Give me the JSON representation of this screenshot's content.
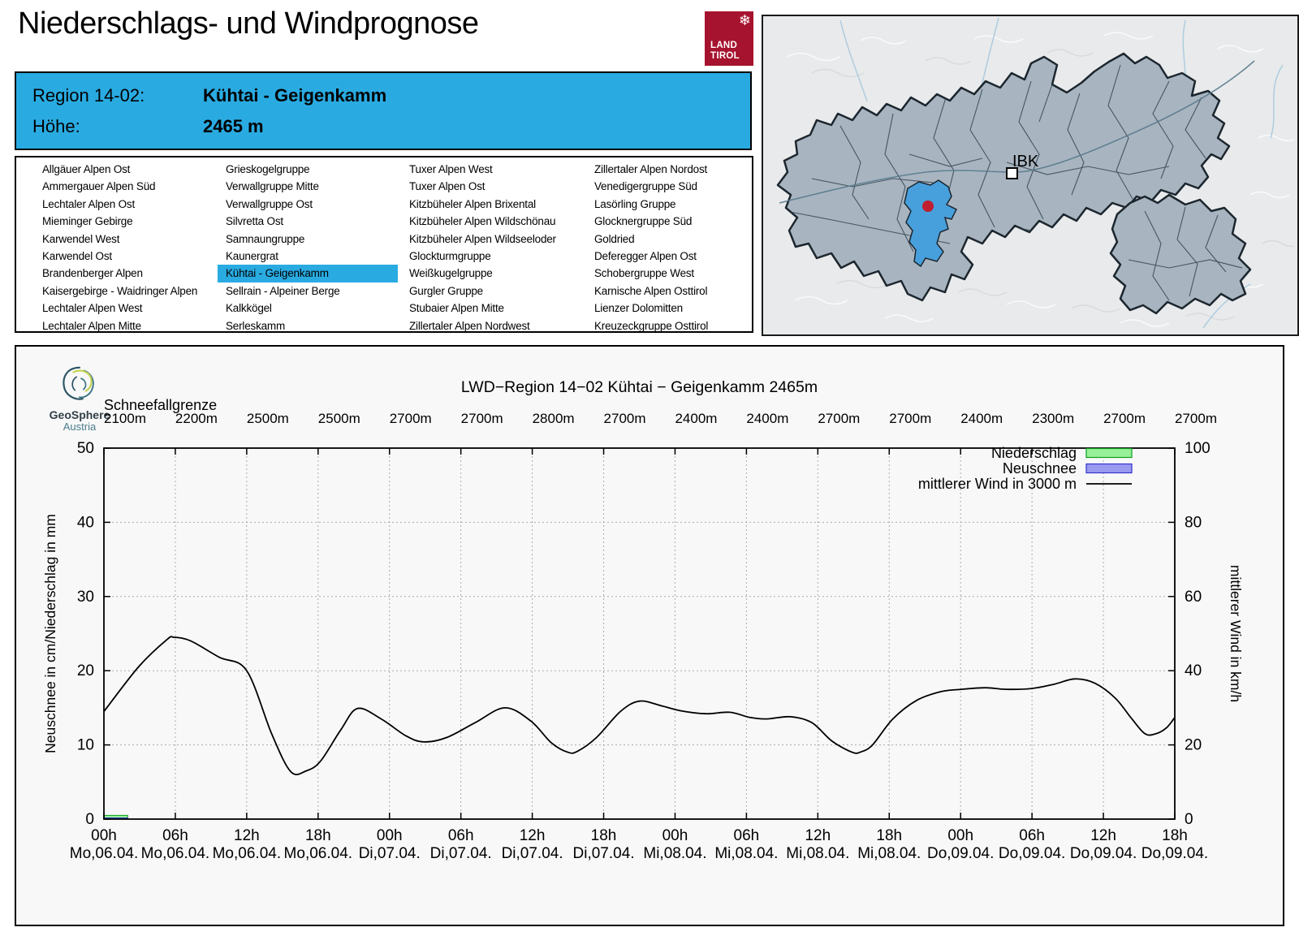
{
  "header": {
    "title": "Niederschlags- und Windprognose",
    "logo": {
      "line1": "LAND",
      "line2": "TIROL",
      "snowflake_icon": "snowflake",
      "bg_color": "#a6132e"
    }
  },
  "region_info": {
    "region_label": "Region 14-02:",
    "region_value": "Kühtai - Geigenkamm",
    "altitude_label": "Höhe:",
    "altitude_value": "2465 m",
    "accent_color": "#29abe2"
  },
  "region_list": {
    "selected": "Kühtai - Geigenkamm",
    "columns": [
      [
        "Allgäuer Alpen Ost",
        "Ammergauer Alpen Süd",
        "Lechtaler Alpen Ost",
        "Mieminger Gebirge",
        "Karwendel West",
        "Karwendel Ost",
        "Brandenberger Alpen",
        "Kaisergebirge - Waidringer Alpen",
        "Lechtaler Alpen West",
        "Lechtaler Alpen Mitte"
      ],
      [
        "Grieskogelgruppe",
        "Verwallgruppe Mitte",
        "Verwallgruppe Ost",
        "Silvretta Ost",
        "Samnaungruppe",
        "Kaunergrat",
        "Kühtai - Geigenkamm",
        "Sellrain - Alpeiner Berge",
        "Kalkkögel",
        "Serleskamm"
      ],
      [
        "Tuxer Alpen West",
        "Tuxer Alpen Ost",
        "Kitzbüheler Alpen Brixental",
        "Kitzbüheler Alpen Wildschönau",
        "Kitzbüheler Alpen Wildseeloder",
        "Glockturmgruppe",
        "Weißkugelgruppe",
        "Gurgler Gruppe",
        "Stubaier Alpen Mitte",
        "Zillertaler Alpen Nordwest"
      ],
      [
        "Zillertaler Alpen Nordost",
        "Venedigergruppe Süd",
        "Lasörling Gruppe",
        "Glocknergruppe Süd",
        "Goldried",
        "Deferegger Alpen Ost",
        "Schobergruppe West",
        "Karnische Alpen Osttirol",
        "Lienzer Dolomitten",
        "Kreuzeckgruppe Osttirol"
      ]
    ]
  },
  "map": {
    "city_label": "IBK",
    "selected_region_color": "#479fdc",
    "marker_color": "#c01f2f"
  },
  "chart": {
    "source_logo": {
      "name": "GeoSphere",
      "country": "Austria"
    }
  },
  "chart_data": {
    "type": "line",
    "title": "LWD−Region 14−02 Kühtai − Geigenkamm 2465m",
    "snowline": {
      "label": "Schneefallgrenze",
      "values": [
        "2100m",
        "2200m",
        "2500m",
        "2500m",
        "2700m",
        "2700m",
        "2800m",
        "2700m",
        "2400m",
        "2400m",
        "2700m",
        "2700m",
        "2400m",
        "2300m",
        "2700m",
        "2700m"
      ]
    },
    "x_tick_hours": [
      "00h",
      "06h",
      "12h",
      "18h",
      "00h",
      "06h",
      "12h",
      "18h",
      "00h",
      "06h",
      "12h",
      "18h",
      "00h",
      "06h",
      "12h",
      "18h"
    ],
    "x_tick_dates": [
      "Mo,06.04.",
      "Mo,06.04.",
      "Mo,06.04.",
      "Mo,06.04.",
      "Di,07.04.",
      "Di,07.04.",
      "Di,07.04.",
      "Di,07.04.",
      "Mi,08.04.",
      "Mi,08.04.",
      "Mi,08.04.",
      "Mi,08.04.",
      "Do,09.04.",
      "Do,09.04.",
      "Do,09.04.",
      "Do,09.04."
    ],
    "ylabel_left": "Neuschnee in cm/Niederschlag in mm",
    "ylabel_right": "mittlerer Wind in km/h",
    "ylim_left": [
      0,
      50
    ],
    "ylim_right": [
      0,
      100
    ],
    "yticks_left": [
      0,
      10,
      20,
      30,
      40,
      50
    ],
    "yticks_right": [
      0,
      20,
      40,
      60,
      80,
      100
    ],
    "grid": true,
    "legend_position": "top-right",
    "legend": [
      {
        "label": "Niederschlag",
        "type": "box",
        "fill": "#97f097",
        "stroke": "#0e9e1e"
      },
      {
        "label": "Neuschnee",
        "type": "box",
        "fill": "#9a9af0",
        "stroke": "#3333cc"
      },
      {
        "label": "mittlerer Wind in 3000 m",
        "type": "line",
        "stroke": "#000000"
      }
    ],
    "series": [
      {
        "name": "mittlerer Wind in 3000 m",
        "unit": "km/h",
        "axis": "right",
        "type": "line",
        "points": [
          [
            0,
            29
          ],
          [
            2.9,
            41
          ],
          [
            5.3,
            48.4
          ],
          [
            5.9,
            49
          ],
          [
            7.3,
            48
          ],
          [
            9.7,
            43.6
          ],
          [
            12,
            40
          ],
          [
            14.1,
            23
          ],
          [
            15.7,
            12.8
          ],
          [
            17,
            13
          ],
          [
            18.2,
            15.6
          ],
          [
            19.9,
            24
          ],
          [
            21.3,
            29.8
          ],
          [
            23.3,
            27
          ],
          [
            25.4,
            22.4
          ],
          [
            26.9,
            20.8
          ],
          [
            28.8,
            22
          ],
          [
            31.2,
            26
          ],
          [
            33.7,
            30
          ],
          [
            35.9,
            26.4
          ],
          [
            37.6,
            20.6
          ],
          [
            39,
            18
          ],
          [
            39.8,
            18.3
          ],
          [
            41.4,
            22
          ],
          [
            43.4,
            29
          ],
          [
            45,
            31.8
          ],
          [
            46.8,
            30.6
          ],
          [
            48.5,
            29.2
          ],
          [
            50.6,
            28.4
          ],
          [
            52.6,
            28.8
          ],
          [
            54.3,
            27.4
          ],
          [
            55.7,
            27
          ],
          [
            57.7,
            27.6
          ],
          [
            59.5,
            26
          ],
          [
            61.2,
            21
          ],
          [
            62.9,
            18
          ],
          [
            63.6,
            18.1
          ],
          [
            64.6,
            20
          ],
          [
            66.3,
            27
          ],
          [
            68.3,
            32
          ],
          [
            70.4,
            34.4
          ],
          [
            72.1,
            35
          ],
          [
            74.1,
            35.4
          ],
          [
            75.8,
            35
          ],
          [
            78,
            35.2
          ],
          [
            79.9,
            36.4
          ],
          [
            81.6,
            37.8
          ],
          [
            83.3,
            36.6
          ],
          [
            85,
            32.6
          ],
          [
            86.4,
            27
          ],
          [
            87.5,
            23
          ],
          [
            88.4,
            23
          ],
          [
            89.3,
            24.6
          ],
          [
            90,
            27.4
          ]
        ]
      }
    ],
    "bars": [
      {
        "name": "Niederschlag",
        "unit": "mm",
        "axis": "left",
        "from_hour": 0,
        "to_hour": 2,
        "value": 0.5
      },
      {
        "name": "Neuschnee",
        "unit": "cm",
        "axis": "left",
        "from_hour": 0,
        "to_hour": 2,
        "value": 0.15
      }
    ]
  }
}
